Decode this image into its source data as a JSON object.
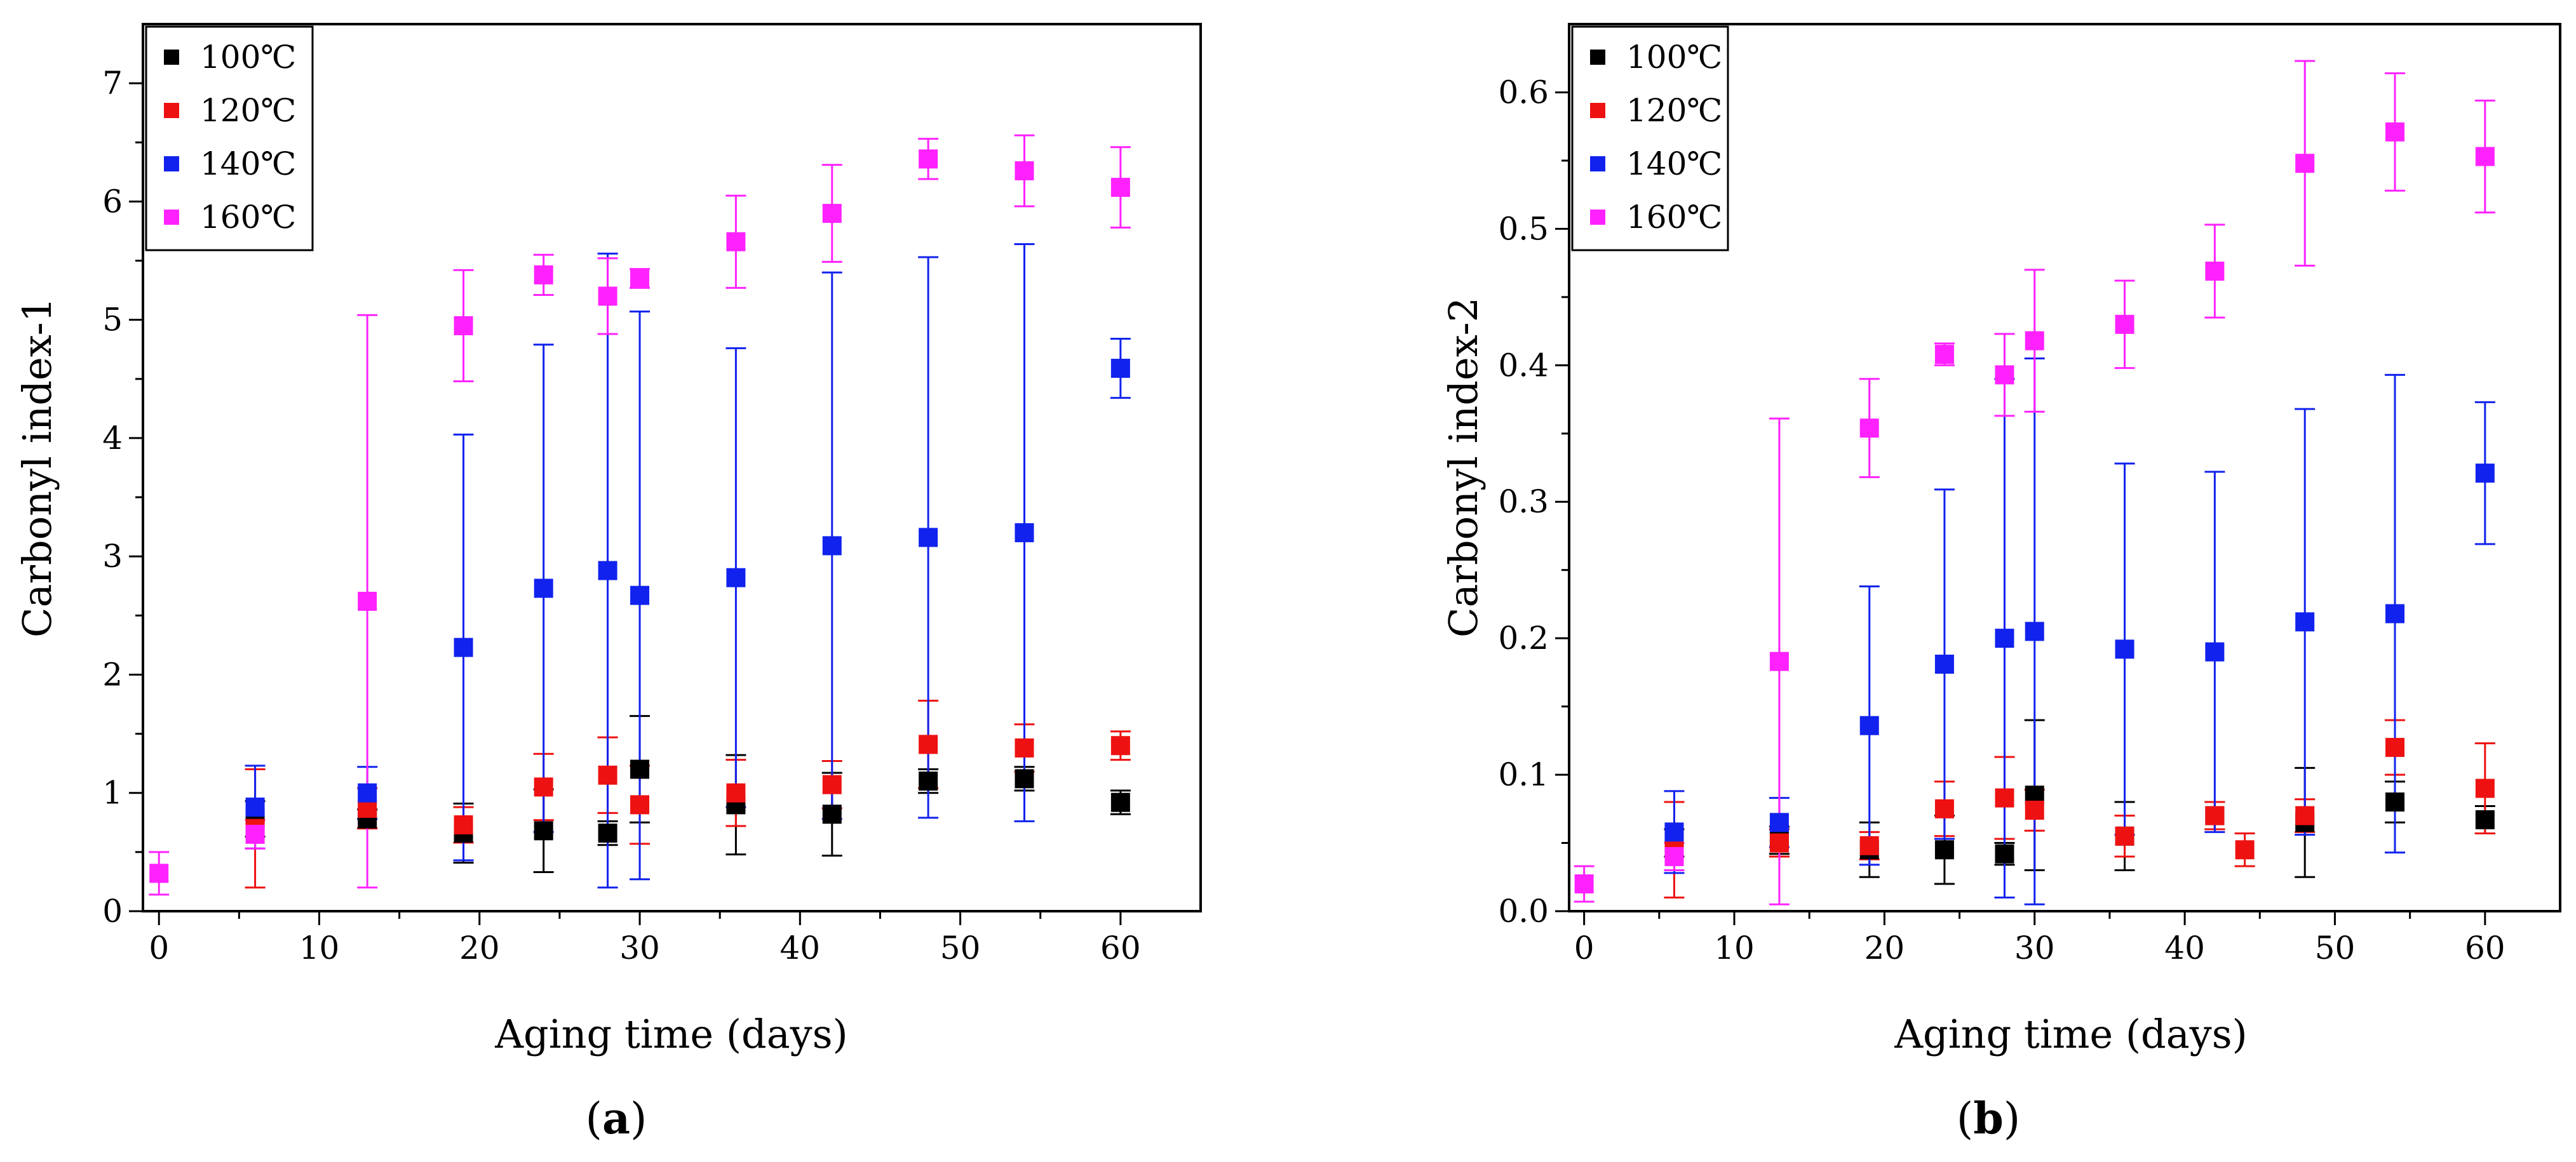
{
  "chart_data": [
    {
      "type": "scatter",
      "panel_label": "a",
      "xlabel": "Aging time (days)",
      "ylabel": "Carbonyl index-1",
      "xlim": [
        -1,
        65
      ],
      "ylim": [
        0,
        7.5
      ],
      "xticks": [
        0,
        10,
        20,
        30,
        40,
        50,
        60
      ],
      "yticks": [
        0,
        1,
        2,
        3,
        4,
        5,
        6,
        7
      ],
      "legend_position": "top-left",
      "grid": false,
      "series": [
        {
          "name": "100℃",
          "color": "#000000",
          "x": [
            6,
            13,
            19,
            24,
            28,
            30,
            36,
            42,
            48,
            54,
            60
          ],
          "y": [
            0.78,
            0.78,
            0.66,
            0.68,
            0.66,
            1.2,
            0.9,
            0.82,
            1.1,
            1.12,
            0.92
          ],
          "err": [
            0.15,
            0.08,
            0.25,
            0.35,
            0.1,
            0.45,
            0.42,
            0.35,
            0.1,
            0.1,
            0.1
          ]
        },
        {
          "name": "120℃",
          "color": "#ee1111",
          "x": [
            6,
            13,
            19,
            24,
            28,
            30,
            36,
            42,
            48,
            54,
            60
          ],
          "y": [
            0.7,
            0.87,
            0.73,
            1.05,
            1.15,
            0.9,
            1.0,
            1.07,
            1.41,
            1.38,
            1.4
          ],
          "err": [
            0.5,
            0.17,
            0.15,
            0.28,
            0.32,
            0.33,
            0.28,
            0.2,
            0.37,
            0.2,
            0.12
          ]
        },
        {
          "name": "140℃",
          "color": "#1122ee",
          "x": [
            6,
            13,
            19,
            24,
            28,
            30,
            36,
            42,
            48,
            54,
            60
          ],
          "y": [
            0.88,
            1.0,
            2.23,
            2.73,
            2.88,
            2.67,
            2.82,
            3.09,
            3.16,
            3.2,
            4.59
          ],
          "err": [
            0.35,
            0.22,
            1.8,
            2.06,
            2.68,
            2.4,
            1.94,
            2.31,
            2.37,
            2.44,
            0.25
          ]
        },
        {
          "name": "160℃",
          "color": "#ff22ff",
          "x": [
            0,
            6,
            13,
            19,
            24,
            28,
            30,
            36,
            42,
            48,
            54,
            60
          ],
          "y": [
            0.32,
            0.65,
            2.62,
            4.95,
            5.38,
            5.2,
            5.35,
            5.66,
            5.9,
            6.36,
            6.26,
            6.12
          ],
          "err": [
            0.18,
            0.12,
            2.42,
            0.47,
            0.17,
            0.32,
            0.08,
            0.39,
            0.41,
            0.17,
            0.3,
            0.34
          ]
        }
      ]
    },
    {
      "type": "scatter",
      "panel_label": "b",
      "xlabel": "Aging time (days)",
      "ylabel": "Carbonyl index-2",
      "xlim": [
        -1,
        65
      ],
      "ylim": [
        0,
        0.65
      ],
      "xticks": [
        0,
        10,
        20,
        30,
        40,
        50,
        60
      ],
      "yticks": [
        0.0,
        0.1,
        0.2,
        0.3,
        0.4,
        0.5,
        0.6
      ],
      "ytick_labels": [
        "0.0",
        "0.1",
        "0.2",
        "0.3",
        "0.4",
        "0.5",
        "0.6"
      ],
      "legend_position": "top-left",
      "grid": false,
      "series": [
        {
          "name": "100℃",
          "color": "#000000",
          "x": [
            6,
            13,
            19,
            24,
            28,
            30,
            36,
            42,
            48,
            54,
            60
          ],
          "y": [
            0.05,
            0.052,
            0.045,
            0.045,
            0.042,
            0.085,
            0.055,
            0.07,
            0.065,
            0.08,
            0.067
          ],
          "err": [
            0.01,
            0.01,
            0.02,
            0.025,
            0.008,
            0.055,
            0.025,
            0.01,
            0.04,
            0.015,
            0.01
          ]
        },
        {
          "name": "120℃",
          "color": "#ee1111",
          "x": [
            6,
            13,
            19,
            24,
            28,
            30,
            36,
            42,
            44,
            48,
            54,
            60
          ],
          "y": [
            0.045,
            0.05,
            0.048,
            0.075,
            0.083,
            0.074,
            0.055,
            0.07,
            0.045,
            0.07,
            0.12,
            0.09
          ],
          "err": [
            0.035,
            0.01,
            0.01,
            0.02,
            0.03,
            0.015,
            0.015,
            0.01,
            0.012,
            0.012,
            0.02,
            0.033
          ]
        },
        {
          "name": "140℃",
          "color": "#1122ee",
          "x": [
            6,
            13,
            19,
            24,
            28,
            30,
            36,
            42,
            48,
            54,
            60
          ],
          "y": [
            0.058,
            0.065,
            0.136,
            0.181,
            0.2,
            0.205,
            0.192,
            0.19,
            0.212,
            0.218,
            0.321
          ],
          "err": [
            0.03,
            0.018,
            0.102,
            0.128,
            0.19,
            0.2,
            0.136,
            0.132,
            0.156,
            0.175,
            0.052
          ]
        },
        {
          "name": "160℃",
          "color": "#ff22ff",
          "x": [
            0,
            6,
            13,
            19,
            24,
            28,
            30,
            36,
            42,
            48,
            54,
            60
          ],
          "y": [
            0.02,
            0.04,
            0.183,
            0.354,
            0.408,
            0.393,
            0.418,
            0.43,
            0.469,
            0.548,
            0.571,
            0.553
          ],
          "err": [
            0.013,
            0.01,
            0.178,
            0.036,
            0.008,
            0.03,
            0.052,
            0.032,
            0.034,
            0.075,
            0.043,
            0.041
          ]
        }
      ]
    }
  ]
}
